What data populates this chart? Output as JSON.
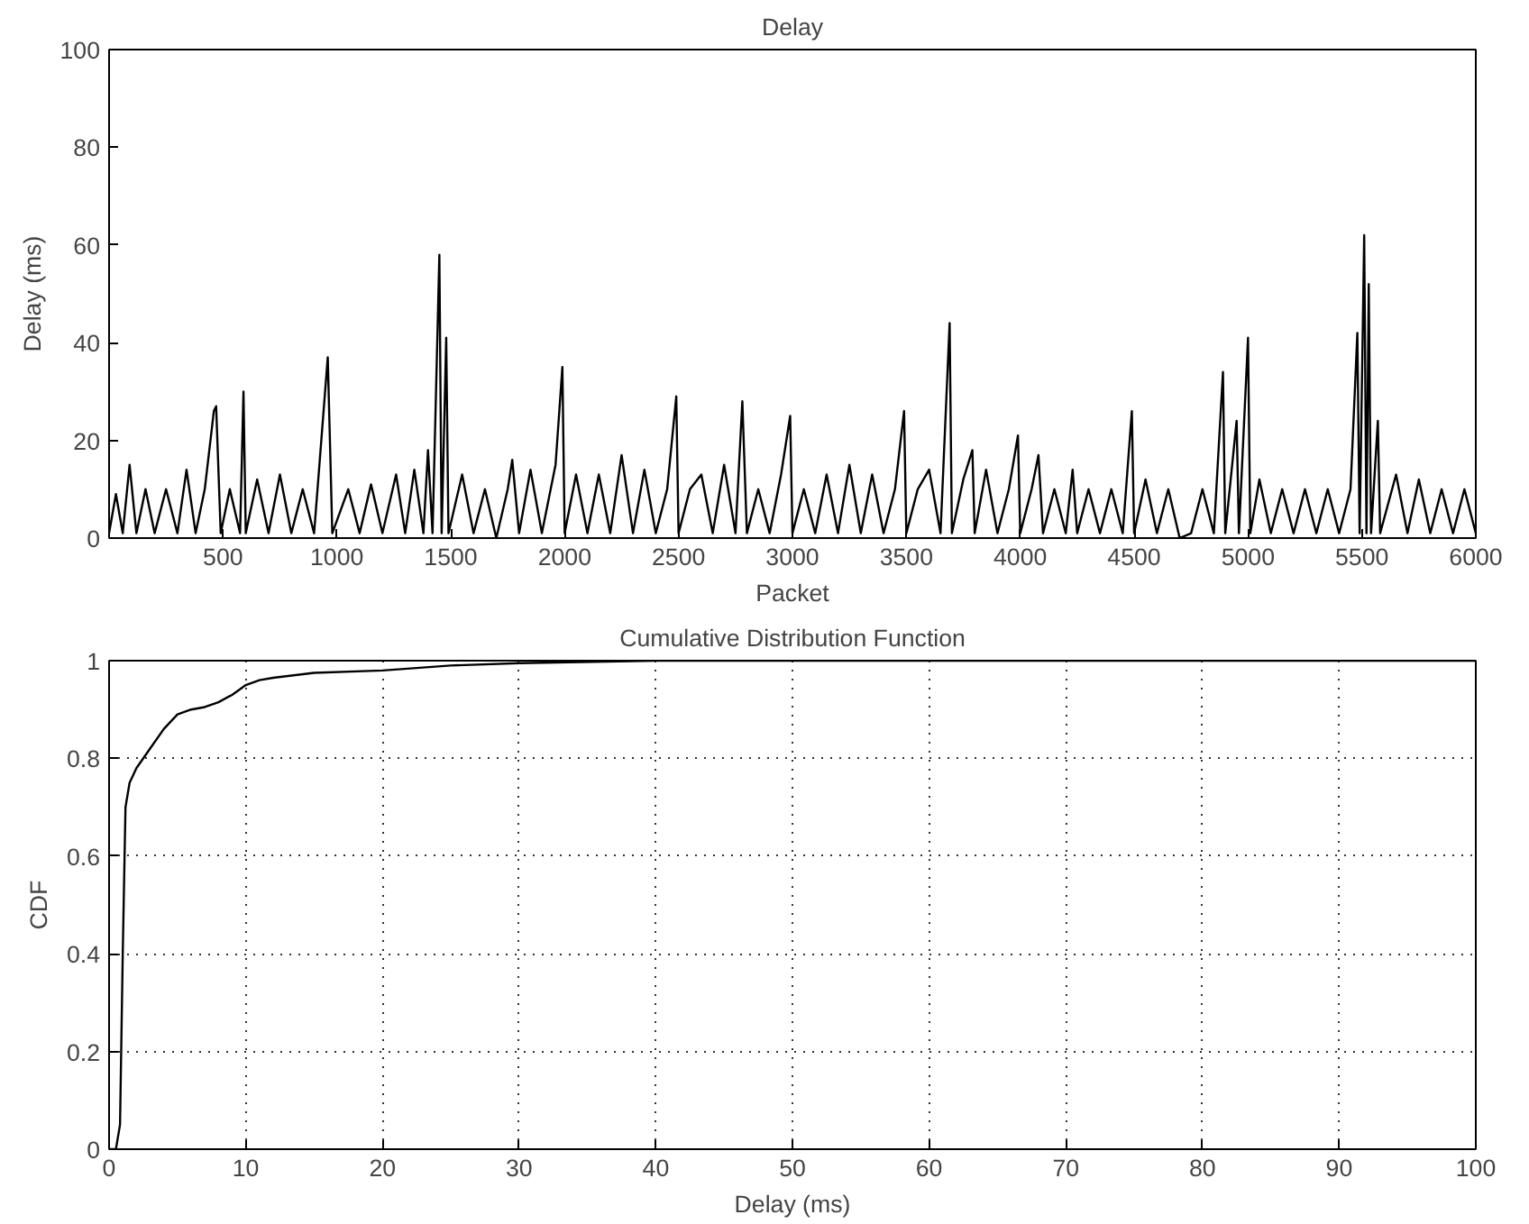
{
  "chart_data": [
    {
      "type": "line",
      "title": "Delay",
      "xlabel": "Packet",
      "ylabel": "Delay (ms)",
      "xlim": [
        0,
        6000
      ],
      "ylim": [
        0,
        100
      ],
      "xticks": [
        500,
        1000,
        1500,
        2000,
        2500,
        3000,
        3500,
        4000,
        4500,
        5000,
        5500,
        6000
      ],
      "yticks": [
        0,
        20,
        40,
        60,
        80,
        100
      ],
      "series": [
        {
          "color": "#000000",
          "x": [
            0,
            30,
            60,
            90,
            120,
            160,
            200,
            250,
            300,
            340,
            380,
            420,
            460,
            470,
            490,
            530,
            575,
            590,
            600,
            650,
            700,
            750,
            800,
            850,
            900,
            960,
            980,
            1050,
            1100,
            1150,
            1200,
            1260,
            1300,
            1340,
            1380,
            1400,
            1420,
            1450,
            1460,
            1480,
            1490,
            1550,
            1600,
            1650,
            1700,
            1750,
            1770,
            1800,
            1850,
            1900,
            1960,
            1990,
            2000,
            2050,
            2100,
            2150,
            2200,
            2250,
            2300,
            2350,
            2400,
            2450,
            2490,
            2500,
            2550,
            2600,
            2650,
            2700,
            2750,
            2780,
            2800,
            2850,
            2900,
            2950,
            2990,
            3000,
            3050,
            3100,
            3150,
            3200,
            3250,
            3300,
            3350,
            3400,
            3450,
            3490,
            3500,
            3550,
            3600,
            3650,
            3690,
            3700,
            3750,
            3790,
            3800,
            3850,
            3900,
            3950,
            3990,
            4000,
            4050,
            4080,
            4100,
            4150,
            4200,
            4230,
            4250,
            4300,
            4350,
            4400,
            4450,
            4490,
            4500,
            4550,
            4600,
            4650,
            4700,
            4750,
            4800,
            4850,
            4890,
            4900,
            4950,
            4960,
            5000,
            5010,
            5050,
            5100,
            5150,
            5200,
            5250,
            5300,
            5350,
            5400,
            5450,
            5480,
            5490,
            5510,
            5520,
            5530,
            5540,
            5570,
            5580,
            5650,
            5700,
            5750,
            5800,
            5850,
            5900,
            5950,
            6000
          ],
          "values": [
            1,
            9,
            1,
            15,
            1,
            10,
            1,
            10,
            1,
            14,
            1,
            10,
            26,
            27,
            1,
            10,
            1,
            30,
            1,
            12,
            1,
            13,
            1,
            10,
            1,
            37,
            1,
            10,
            1,
            11,
            1,
            13,
            1,
            14,
            1,
            18,
            1,
            58,
            1,
            41,
            1,
            13,
            1,
            10,
            0,
            10,
            16,
            1,
            14,
            1,
            15,
            35,
            1,
            13,
            1,
            13,
            1,
            17,
            1,
            14,
            1,
            10,
            29,
            1,
            10,
            13,
            1,
            15,
            1,
            28,
            1,
            10,
            1,
            13,
            25,
            1,
            10,
            1,
            13,
            1,
            15,
            1,
            13,
            1,
            10,
            26,
            1,
            10,
            14,
            1,
            44,
            1,
            12,
            18,
            1,
            14,
            1,
            10,
            21,
            1,
            10,
            17,
            1,
            10,
            1,
            14,
            1,
            10,
            1,
            10,
            1,
            26,
            1,
            12,
            1,
            10,
            0,
            1,
            10,
            1,
            34,
            1,
            24,
            1,
            41,
            1,
            12,
            1,
            10,
            1,
            10,
            1,
            10,
            1,
            10,
            42,
            1,
            62,
            1,
            52,
            1,
            24,
            1,
            13,
            1,
            12,
            1,
            10,
            1,
            10,
            1
          ]
        }
      ],
      "grid": false
    },
    {
      "type": "line",
      "title": "Cumulative Distribution Function",
      "xlabel": "Delay (ms)",
      "ylabel": "CDF",
      "xlim": [
        0,
        100
      ],
      "ylim": [
        0,
        1
      ],
      "xticks": [
        0,
        10,
        20,
        30,
        40,
        50,
        60,
        70,
        80,
        90,
        100
      ],
      "yticks": [
        0,
        0.2,
        0.4,
        0.6,
        0.8,
        1
      ],
      "series": [
        {
          "color": "#000000",
          "x": [
            0,
            0.5,
            0.8,
            1,
            1.2,
            1.5,
            2,
            3,
            4,
            5,
            6,
            7,
            8,
            9,
            10,
            11,
            12,
            15,
            20,
            25,
            30,
            40,
            100
          ],
          "values": [
            0,
            0,
            0.05,
            0.4,
            0.7,
            0.75,
            0.78,
            0.82,
            0.86,
            0.89,
            0.9,
            0.905,
            0.915,
            0.93,
            0.95,
            0.96,
            0.965,
            0.975,
            0.98,
            0.99,
            0.995,
            1,
            1
          ]
        }
      ],
      "grid": true,
      "line_style": "solid"
    }
  ]
}
